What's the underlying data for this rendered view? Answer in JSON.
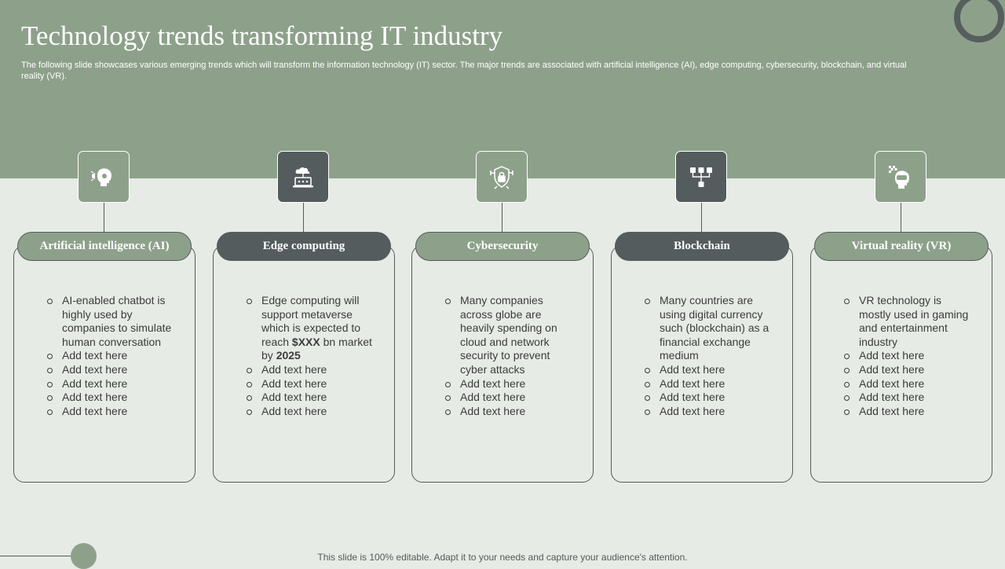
{
  "slide": {
    "title": "Technology trends transforming IT industry",
    "subtitle": "The following slide showcases various emerging trends which will transform the information technology (IT) sector. The major trends are associated with artificial intelligence (AI), edge computing, cybersecurity, blockchain, and virtual reality (VR).",
    "footer": "This slide is 100% editable. Adapt it to your needs and capture your audience's attention."
  },
  "colors": {
    "band": "#8da18a",
    "dark": "#545c5d",
    "background": "#e6ebe5"
  },
  "trends": [
    {
      "icon": "ai-head-icon",
      "label": "Artificial  intelligence (AI)",
      "bullets": [
        "AI-enabled chatbot is highly used by companies to simulate human conversation",
        "Add text here",
        "Add text here",
        "Add text here",
        "Add text here",
        "Add text here"
      ]
    },
    {
      "icon": "cloud-laptop-icon",
      "label": "Edge computing",
      "bullets": [
        "Edge computing will support metaverse which is expected to reach",
        "$XXX",
        "bn market by",
        "2025",
        "Add text here",
        "Add text here",
        "Add text here",
        "Add text here"
      ]
    },
    {
      "icon": "shield-lock-icon",
      "label": "Cybersecurity",
      "bullets": [
        "Many companies across globe are heavily spending on cloud and network security to prevent cyber attacks",
        "Add text here",
        "Add text here",
        "Add text here"
      ]
    },
    {
      "icon": "blockchain-cubes-icon",
      "label": "Blockchain",
      "bullets": [
        "Many countries are using digital currency such (blockchain) as a financial exchange medium",
        "Add text here",
        "Add text here",
        "Add text here",
        "Add text here"
      ]
    },
    {
      "icon": "vr-headset-icon",
      "label": "Virtual  reality (VR)",
      "bullets": [
        "VR technology is mostly used in gaming and entertainment industry",
        "Add text here",
        "Add text here",
        "Add text here",
        "Add text here",
        "Add text here"
      ]
    }
  ]
}
